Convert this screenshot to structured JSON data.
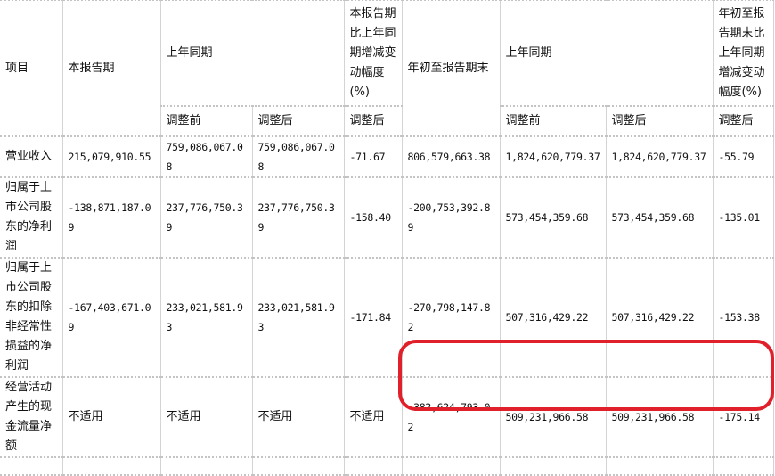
{
  "header": {
    "item": "项目",
    "current_period": "本报告期",
    "prior_period": "上年同期",
    "current_change": "本报告期比上年同期增减变动幅度(%)",
    "ytd": "年初至报告期末",
    "ytd_prior": "上年同期",
    "ytd_change": "年初至报告期末比上年同期增减变动幅度(%)",
    "before_adjust": "调整前",
    "after_adjust": "调整后"
  },
  "rows": [
    {
      "item": "营业收入",
      "current": "215,079,910.55",
      "prior_before": "759,086,067.08",
      "prior_after": "759,086,067.08",
      "change": "-71.67",
      "ytd": "806,579,663.38",
      "ytd_prior_before": "1,824,620,779.37",
      "ytd_prior_after": "1,824,620,779.37",
      "ytd_change": "-55.79"
    },
    {
      "item": "归属于上市公司股东的净利润",
      "current": "-138,871,187.09",
      "prior_before": "237,776,750.39",
      "prior_after": "237,776,750.39",
      "change": "-158.40",
      "ytd": "-200,753,392.89",
      "ytd_prior_before": "573,454,359.68",
      "ytd_prior_after": "573,454,359.68",
      "ytd_change": "-135.01"
    },
    {
      "item": "归属于上市公司股东的扣除非经常性损益的净利润",
      "current": "-167,403,671.09",
      "prior_before": "233,021,581.93",
      "prior_after": "233,021,581.93",
      "change": "-171.84",
      "ytd": "-270,798,147.82",
      "ytd_prior_before": "507,316,429.22",
      "ytd_prior_after": "507,316,429.22",
      "ytd_change": "-153.38"
    },
    {
      "item": "经营活动产生的现金流量净额",
      "current": "不适用",
      "prior_before": "不适用",
      "prior_after": "不适用",
      "change": "不适用",
      "ytd": "-382,624,793.02",
      "ytd_prior_before": "509,231,966.58",
      "ytd_prior_after": "509,231,966.58",
      "ytd_change": "-175.14"
    }
  ],
  "highlight_color": "#e0202a"
}
